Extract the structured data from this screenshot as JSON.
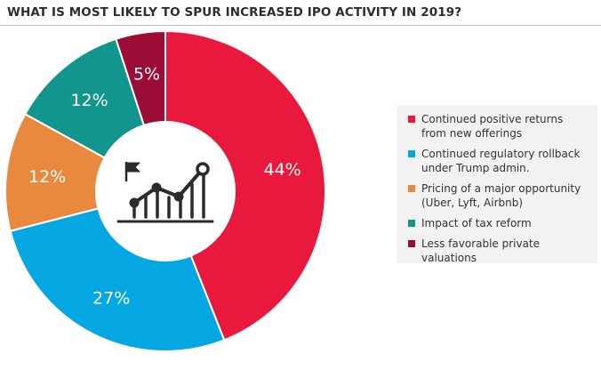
{
  "title": "WHAT IS MOST LIKELY TO SPUR INCREASED IPO ACTIVITY IN 2019?",
  "center_icon": "chart-growth-flag-icon",
  "chart_data": {
    "type": "pie",
    "donut": true,
    "title": "WHAT IS MOST LIKELY TO SPUR INCREASED IPO ACTIVITY IN 2019?",
    "legend_position": "right",
    "slices": [
      {
        "label": "Continued positive returns\nfrom new offerings",
        "value": 44,
        "display": "44%",
        "color": "#e8193c"
      },
      {
        "label": "Continued regulatory rollback\nunder Trump admin.",
        "value": 27,
        "display": "27%",
        "color": "#04a7e2"
      },
      {
        "label": "Pricing of a major opportunity\n(Uber, Lyft, Airbnb)",
        "value": 12,
        "display": "12%",
        "color": "#e8893d"
      },
      {
        "label": "Impact of tax reform",
        "value": 12,
        "display": "12%",
        "color": "#11958c"
      },
      {
        "label": "Less favorable private valuations",
        "value": 5,
        "display": "5%",
        "color": "#9b0d36"
      }
    ]
  }
}
